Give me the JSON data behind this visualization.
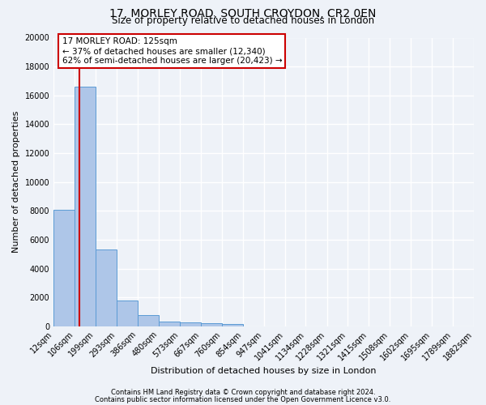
{
  "title": "17, MORLEY ROAD, SOUTH CROYDON, CR2 0EN",
  "subtitle": "Size of property relative to detached houses in London",
  "xlabel": "Distribution of detached houses by size in London",
  "ylabel": "Number of detached properties",
  "bin_labels": [
    "12sqm",
    "106sqm",
    "199sqm",
    "293sqm",
    "386sqm",
    "480sqm",
    "573sqm",
    "667sqm",
    "760sqm",
    "854sqm",
    "947sqm",
    "1041sqm",
    "1134sqm",
    "1228sqm",
    "1321sqm",
    "1415sqm",
    "1508sqm",
    "1602sqm",
    "1695sqm",
    "1789sqm",
    "1882sqm"
  ],
  "bin_edges": [
    12,
    106,
    199,
    293,
    386,
    480,
    573,
    667,
    760,
    854,
    947,
    1041,
    1134,
    1228,
    1321,
    1415,
    1508,
    1602,
    1695,
    1789,
    1882
  ],
  "bar_heights": [
    8100,
    16600,
    5300,
    1800,
    750,
    350,
    250,
    200,
    150,
    0,
    0,
    0,
    0,
    0,
    0,
    0,
    0,
    0,
    0,
    0,
    0
  ],
  "bar_color": "#aec6e8",
  "bar_edge_color": "#5b9bd5",
  "property_line_x": 125,
  "property_line_color": "#cc0000",
  "annotation_title": "17 MORLEY ROAD: 125sqm",
  "annotation_line1": "← 37% of detached houses are smaller (12,340)",
  "annotation_line2": "62% of semi-detached houses are larger (20,423) →",
  "annotation_box_facecolor": "#ffffff",
  "annotation_box_edgecolor": "#cc0000",
  "ylim": [
    0,
    20000
  ],
  "yticks": [
    0,
    2000,
    4000,
    6000,
    8000,
    10000,
    12000,
    14000,
    16000,
    18000,
    20000
  ],
  "footer_line1": "Contains HM Land Registry data © Crown copyright and database right 2024.",
  "footer_line2": "Contains public sector information licensed under the Open Government Licence v3.0.",
  "bg_color": "#eef2f8",
  "plot_bg_color": "#eef2f8",
  "grid_color": "#ffffff",
  "title_fontsize": 10,
  "subtitle_fontsize": 8.5,
  "axis_label_fontsize": 8,
  "tick_fontsize": 7,
  "annotation_fontsize": 7.5,
  "footer_fontsize": 6
}
